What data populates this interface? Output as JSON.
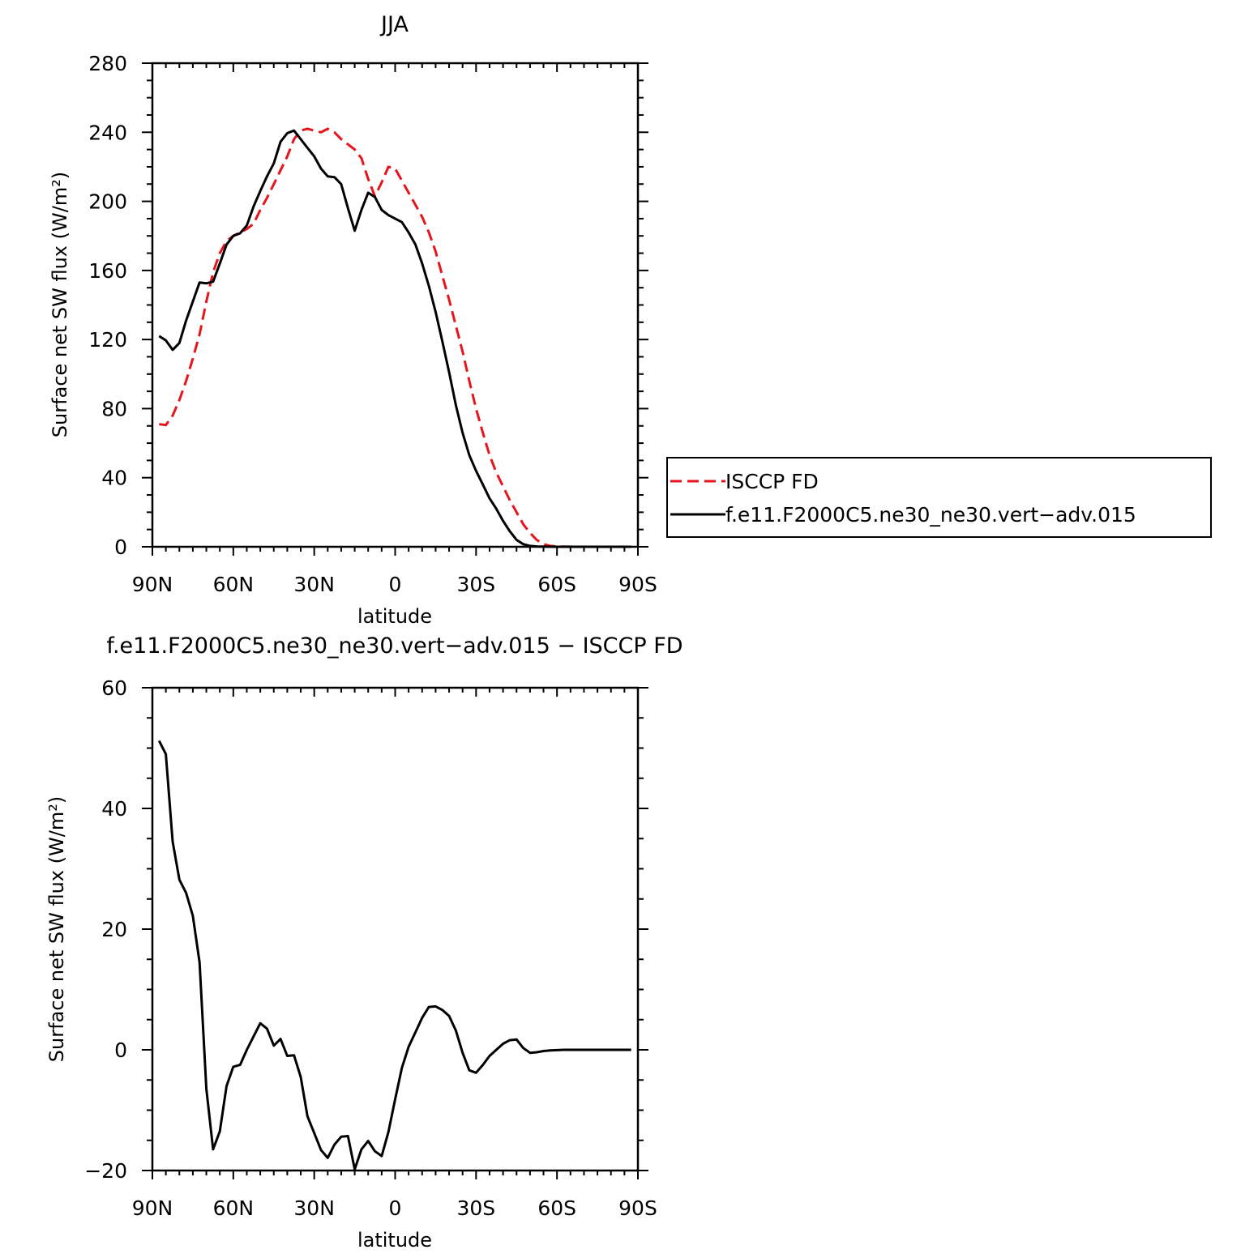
{
  "colors": {
    "obs": "#e8141c",
    "model": "#000000",
    "axis": "#000000"
  },
  "chart_data": [
    {
      "type": "line",
      "title": "JJA",
      "xlabel": "latitude",
      "ylabel": "Surface net SW flux (W/m²)",
      "xlim": [
        90,
        -90
      ],
      "ylim": [
        0,
        280
      ],
      "xticks": [
        {
          "value": 90,
          "label": "90N"
        },
        {
          "value": 60,
          "label": "60N"
        },
        {
          "value": 30,
          "label": "30N"
        },
        {
          "value": 0,
          "label": "0"
        },
        {
          "value": -30,
          "label": "30S"
        },
        {
          "value": -60,
          "label": "60S"
        },
        {
          "value": -90,
          "label": "90S"
        }
      ],
      "yticks": [
        {
          "value": 0,
          "label": "0"
        },
        {
          "value": 40,
          "label": "40"
        },
        {
          "value": 80,
          "label": "80"
        },
        {
          "value": 120,
          "label": "120"
        },
        {
          "value": 160,
          "label": "160"
        },
        {
          "value": 200,
          "label": "200"
        },
        {
          "value": 240,
          "label": "240"
        },
        {
          "value": 280,
          "label": "280"
        }
      ],
      "legend": {
        "placement": "right of plot"
      },
      "series": [
        {
          "name": "ISCCP FD",
          "style": "dashed",
          "color": "#e8141c",
          "x": [
            87.5,
            85,
            82.5,
            80,
            77.5,
            75,
            72.5,
            70,
            67.5,
            65,
            62.5,
            60,
            57.5,
            55,
            52.5,
            50,
            47.5,
            45,
            42.5,
            40,
            37.5,
            35,
            32.5,
            30,
            27.5,
            25,
            22.5,
            20,
            17.5,
            15,
            12.5,
            10,
            7.5,
            5,
            2.5,
            0,
            -2.5,
            -5,
            -7.5,
            -10,
            -12.5,
            -15,
            -17.5,
            -20,
            -22.5,
            -25,
            -27.5,
            -30,
            -32.5,
            -35,
            -37.5,
            -40,
            -42.5,
            -45,
            -47.5,
            -50,
            -52.5,
            -55,
            -57.5,
            -60,
            -62.5,
            -65,
            -67.5,
            -70,
            -72.5,
            -75,
            -77.5,
            -80,
            -82.5,
            -85,
            -87.5
          ],
          "y": [
            71,
            70.5,
            76,
            85,
            96,
            109,
            123,
            142,
            159,
            170,
            177,
            180,
            182,
            184,
            187,
            195,
            202,
            210,
            218,
            226,
            236,
            241,
            242,
            241,
            240,
            242,
            240,
            236,
            233,
            230,
            225,
            213,
            203,
            211,
            220,
            219,
            212,
            205,
            198,
            191,
            182,
            171,
            157,
            143,
            128,
            113,
            96,
            80,
            66,
            53,
            43,
            35,
            27,
            20,
            13,
            8,
            4,
            1.5,
            0.5,
            0.2,
            0.1,
            0.05,
            0.02,
            0.01,
            0,
            0,
            0,
            0,
            0,
            0,
            0
          ]
        },
        {
          "name": "f.e11.F2000C5.ne30_ne30.vert−adv.015",
          "style": "solid",
          "color": "#000000",
          "x": [
            87.5,
            85,
            82.5,
            80,
            77.5,
            75,
            72.5,
            70,
            67.5,
            65,
            62.5,
            60,
            57.5,
            55,
            52.5,
            50,
            47.5,
            45,
            42.5,
            40,
            37.5,
            35,
            32.5,
            30,
            27.5,
            25,
            22.5,
            20,
            17.5,
            15,
            12.5,
            10,
            7.5,
            5,
            2.5,
            0,
            -2.5,
            -5,
            -7.5,
            -10,
            -12.5,
            -15,
            -17.5,
            -20,
            -22.5,
            -25,
            -27.5,
            -30,
            -32.5,
            -35,
            -37.5,
            -40,
            -42.5,
            -45,
            -47.5,
            -50,
            -52.5,
            -55,
            -57.5,
            -60,
            -62.5,
            -65,
            -67.5,
            -70,
            -72.5,
            -75,
            -77.5,
            -80,
            -82.5,
            -85,
            -87.5
          ],
          "y": [
            122,
            119.5,
            114,
            118,
            131,
            142,
            153,
            152.5,
            153.5,
            164,
            175,
            180,
            181.5,
            186,
            197,
            206,
            214.5,
            222,
            234.5,
            239.5,
            241,
            236,
            231,
            226,
            219,
            214.5,
            214,
            210,
            196,
            183,
            195,
            205,
            202.5,
            195,
            192,
            190,
            188,
            182,
            175,
            164,
            151,
            136,
            119,
            101,
            82,
            66,
            53,
            44,
            36,
            28,
            22,
            15,
            9,
            4,
            1.5,
            0.5,
            0.2,
            0.1,
            0.05,
            0.02,
            0,
            0,
            0,
            0,
            0,
            0,
            0,
            0,
            0,
            0,
            0
          ]
        }
      ]
    },
    {
      "type": "line",
      "title": "f.e11.F2000C5.ne30_ne30.vert−adv.015 − ISCCP FD",
      "xlabel": "latitude",
      "ylabel": "Surface net SW flux (W/m²)",
      "xlim": [
        90,
        -90
      ],
      "ylim": [
        -20,
        60
      ],
      "xticks": [
        {
          "value": 90,
          "label": "90N"
        },
        {
          "value": 60,
          "label": "60N"
        },
        {
          "value": 30,
          "label": "30N"
        },
        {
          "value": 0,
          "label": "0"
        },
        {
          "value": -30,
          "label": "30S"
        },
        {
          "value": -60,
          "label": "60S"
        },
        {
          "value": -90,
          "label": "90S"
        }
      ],
      "yticks": [
        {
          "value": -20,
          "label": "−20"
        },
        {
          "value": 0,
          "label": "0"
        },
        {
          "value": 20,
          "label": "20"
        },
        {
          "value": 40,
          "label": "40"
        },
        {
          "value": 60,
          "label": "60"
        }
      ],
      "series": [
        {
          "style": "solid",
          "color": "#000000",
          "x": [
            87.5,
            85,
            82.5,
            80,
            77.5,
            75,
            72.5,
            70,
            67.5,
            65,
            62.5,
            60,
            57.5,
            55,
            52.5,
            50,
            47.5,
            45,
            42.5,
            40,
            37.5,
            35,
            32.5,
            30,
            27.5,
            25,
            22.5,
            20,
            17.5,
            15,
            12.5,
            10,
            7.5,
            5,
            2.5,
            0,
            -2.5,
            -5,
            -7.5,
            -10,
            -12.5,
            -15,
            -17.5,
            -20,
            -22.5,
            -25,
            -27.5,
            -30,
            -32.5,
            -35,
            -37.5,
            -40,
            -42.5,
            -45,
            -47.5,
            -50,
            -52.5,
            -55,
            -57.5,
            -60,
            -62.5,
            -65,
            -67.5,
            -70,
            -72.5,
            -75,
            -77.5,
            -80,
            -82.5,
            -85,
            -87.5
          ],
          "y": [
            51.2,
            49,
            34.5,
            28.2,
            26,
            22.2,
            14.5,
            -6.5,
            -16.5,
            -13.5,
            -6,
            -2.8,
            -2.5,
            0,
            2.2,
            4.4,
            3.5,
            0.7,
            1.8,
            -1,
            -0.9,
            -4.5,
            -11,
            -13.8,
            -16.6,
            -17.9,
            -15.7,
            -14.4,
            -14.3,
            -19.8,
            -16.5,
            -15.1,
            -16.8,
            -17.6,
            -13.6,
            -8.2,
            -3,
            0.5,
            2.9,
            5.3,
            7.1,
            7.2,
            6.6,
            5.6,
            3.2,
            -0.5,
            -3.4,
            -3.8,
            -2.5,
            -1,
            0,
            1,
            1.6,
            1.7,
            0.3,
            -0.5,
            -0.4,
            -0.2,
            -0.1,
            -0.05,
            0,
            0,
            0,
            0,
            0,
            0,
            0,
            0,
            0,
            0,
            0
          ]
        }
      ]
    }
  ]
}
